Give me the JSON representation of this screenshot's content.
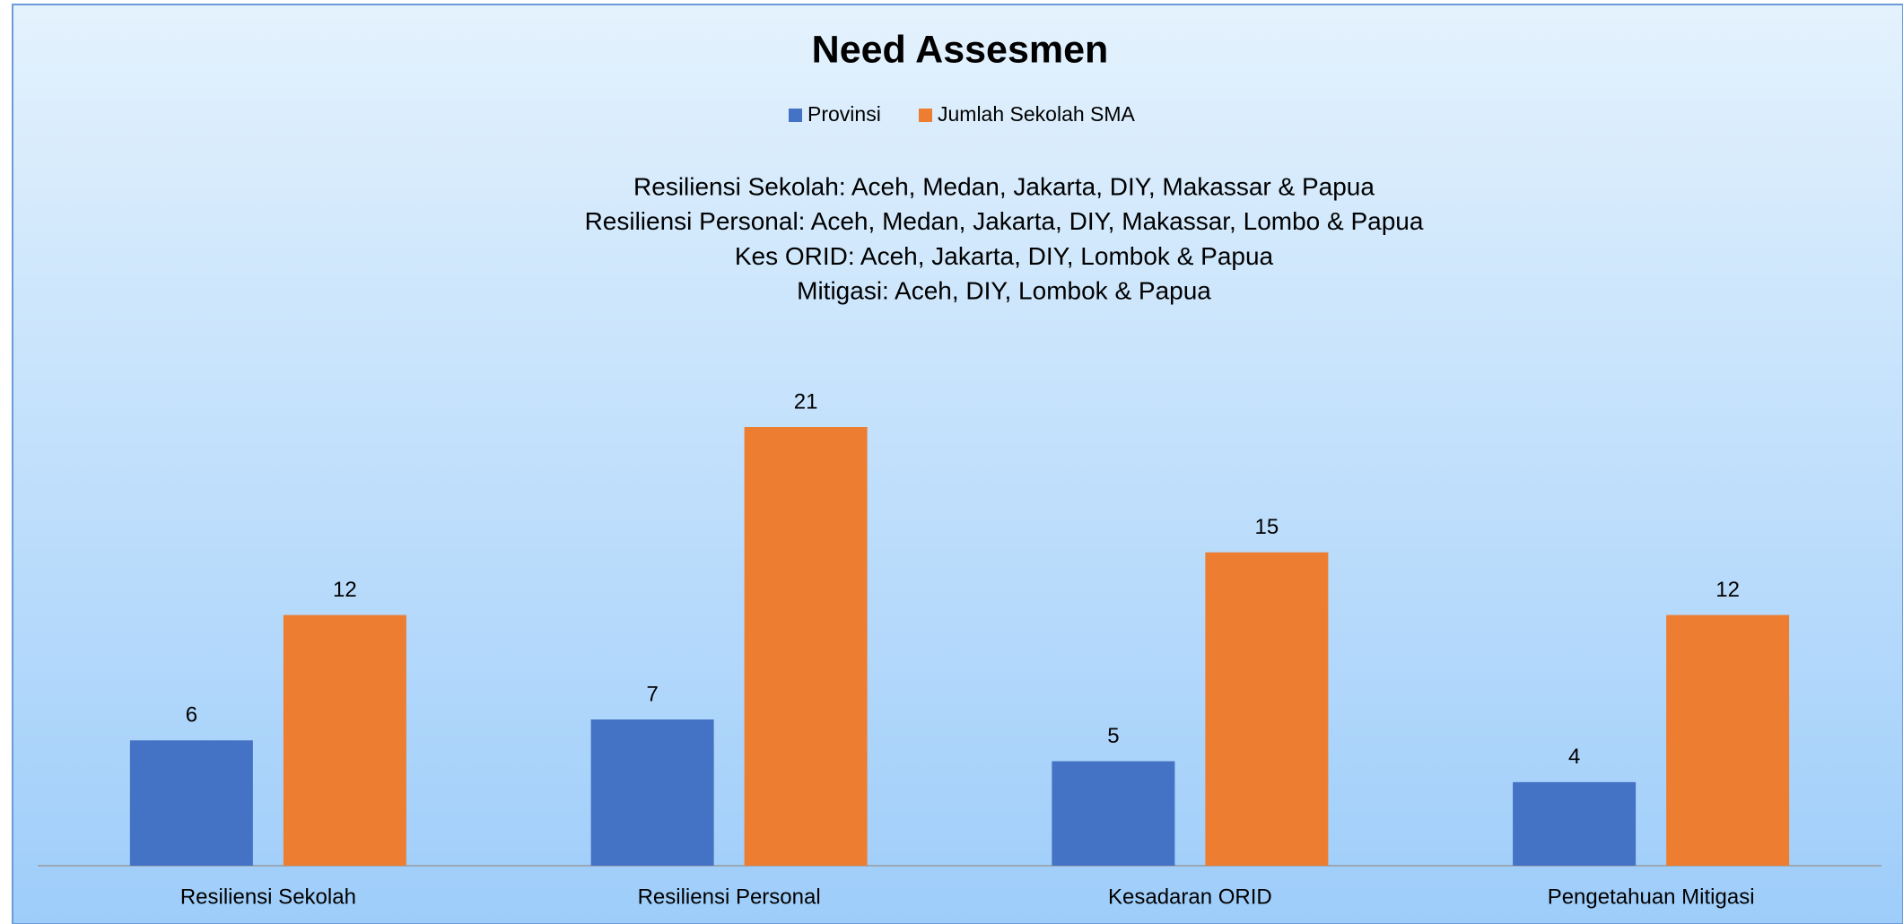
{
  "chart_data": {
    "type": "bar",
    "title": "Need Assesmen",
    "annotations": [
      "Resiliensi Sekolah: Aceh, Medan, Jakarta, DIY, Makassar & Papua",
      "Resiliensi Personal: Aceh, Medan, Jakarta, DIY, Makassar, Lombo & Papua",
      "Kes ORID: Aceh, Jakarta, DIY, Lombok & Papua",
      "Mitigasi: Aceh, DIY, Lombok & Papua"
    ],
    "categories": [
      "Resiliensi Sekolah",
      "Resiliensi Personal",
      "Kesadaran ORID",
      "Pengetahuan Mitigasi"
    ],
    "series": [
      {
        "name": "Provinsi",
        "color": "#4472c4",
        "values": [
          6,
          7,
          5,
          4
        ]
      },
      {
        "name": "Jumlah Sekolah SMA",
        "color": "#ed7d31",
        "values": [
          12,
          21,
          15,
          12
        ]
      }
    ],
    "ylim": [
      0,
      21
    ],
    "legend": "top"
  }
}
